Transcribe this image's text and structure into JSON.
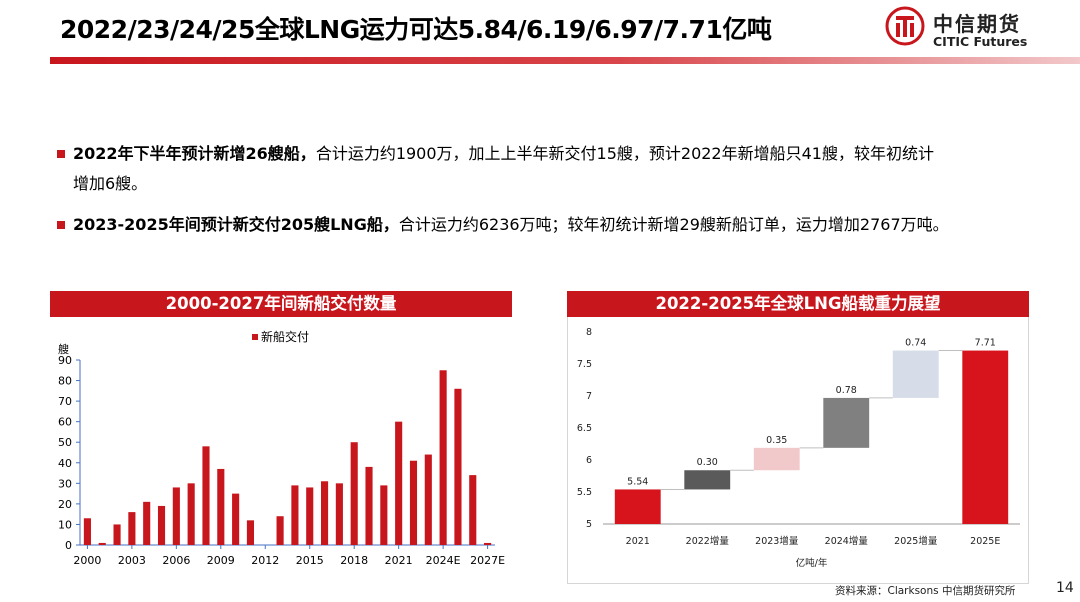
{
  "page": {
    "title": "2022/23/24/25全球LNG运力可达5.84/6.19/6.97/7.71亿吨",
    "brand_cn": "中信期货",
    "brand_en": "CITIC Futures",
    "footer_source": "资料来源：Clarksons 中信期货研究所",
    "page_number": "14",
    "accent_color": "#c8161d"
  },
  "bullets": [
    {
      "bold": "2022年下半年预计新增26艘船，",
      "line1": "合计运力约1900万，加上上半年新交付15艘，预计2022年新增船只41艘，较年初统计",
      "line2": "增加6艘。"
    },
    {
      "bold": "2023-2025年间预计新交付205艘LNG船，",
      "line1": "合计运力约6236万吨；较年初统计新增29艘新船订单，运力增加2767万吨。"
    }
  ],
  "chart_data": [
    {
      "type": "bar",
      "title": "2000-2027年间新船交付数量",
      "ylabel": "艘",
      "series": [
        {
          "name": "新船交付",
          "color": "#c8161d",
          "values": [
            13,
            1,
            10,
            16,
            21,
            19,
            28,
            30,
            48,
            37,
            25,
            12,
            0,
            14,
            29,
            28,
            31,
            30,
            50,
            38,
            29,
            60,
            41,
            44,
            85,
            76,
            34,
            1
          ]
        }
      ],
      "categories": [
        "2000",
        "2001",
        "2002",
        "2003",
        "2004",
        "2005",
        "2006",
        "2007",
        "2008",
        "2009",
        "2010",
        "2011",
        "2012",
        "2013",
        "2014",
        "2015",
        "2016",
        "2017",
        "2018",
        "2019",
        "2020",
        "2021",
        "2022",
        "2023",
        "2024E",
        "2025E",
        "2026E",
        "2027E"
      ],
      "x_tick_labels": [
        "2000",
        "2003",
        "2006",
        "2009",
        "2012",
        "2015",
        "2018",
        "2021",
        "2024E",
        "2027E"
      ],
      "ylim": [
        0,
        90
      ],
      "y_ticks": [
        0,
        10,
        20,
        30,
        40,
        50,
        60,
        70,
        80,
        90
      ],
      "grid": false,
      "legend": "top-center"
    },
    {
      "type": "waterfall",
      "title": "2022-2025年全球LNG船载重力展望",
      "xlabel": "亿吨/年",
      "categories": [
        "2021",
        "2022增量",
        "2023增量",
        "2024增量",
        "2025增量",
        "2025E"
      ],
      "values": [
        5.54,
        0.3,
        0.35,
        0.78,
        0.74,
        7.71
      ],
      "labels": [
        "5.54",
        "0.30",
        "0.35",
        "0.78",
        "0.74",
        "7.71"
      ],
      "kinds": [
        "total",
        "delta",
        "delta",
        "delta",
        "delta",
        "total"
      ],
      "colors": [
        "#d7141c",
        "#5a5a5a",
        "#f2c9cb",
        "#808080",
        "#d6dde9",
        "#d7141c"
      ],
      "ylim": [
        5,
        8
      ],
      "y_ticks": [
        "5",
        "5.5",
        "6",
        "6.5",
        "7",
        "7.5",
        "8"
      ],
      "grid": false
    }
  ]
}
